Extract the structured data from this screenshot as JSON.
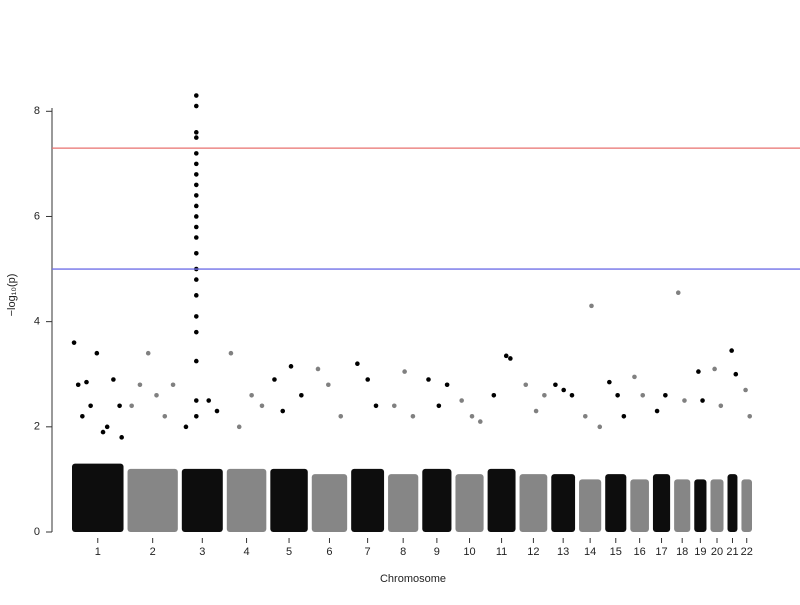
{
  "chart_data": {
    "type": "manhattan",
    "x_label": "Chromosome",
    "y_label": "−log₁₀(p)",
    "ylim": [
      0,
      8.5
    ],
    "yticks": [
      0,
      2,
      4,
      6,
      8
    ],
    "thresholds": [
      {
        "value": 7.3,
        "color": "#e8716f"
      },
      {
        "value": 5,
        "color": "#7070e8"
      }
    ],
    "series": [
      {
        "name": "1",
        "color": "#000000",
        "dense_max": 1.3,
        "x": [
          10,
          30,
          50,
          70,
          90,
          120,
          150,
          170,
          200,
          230,
          240
        ],
        "values": [
          3.6,
          2.8,
          2.2,
          2.85,
          2.4,
          3.4,
          1.9,
          2.0,
          2.9,
          2.4,
          1.8
        ]
      },
      {
        "name": "2",
        "color": "#808080",
        "dense_max": 1.2,
        "x": [
          20,
          60,
          100,
          140,
          180,
          220
        ],
        "values": [
          2.4,
          2.8,
          3.4,
          2.6,
          2.2,
          2.8
        ]
      },
      {
        "name": "3",
        "color": "#000000",
        "dense_max": 1.2,
        "x": [
          20,
          70,
          70,
          70,
          70,
          70,
          70,
          70,
          70,
          70,
          70,
          70,
          70,
          70,
          70,
          70,
          70,
          70,
          70,
          70,
          70,
          70,
          70,
          130,
          170
        ],
        "values": [
          2.0,
          8.3,
          8.1,
          7.6,
          7.5,
          7.2,
          7.0,
          6.8,
          6.6,
          6.4,
          6.2,
          6.0,
          5.8,
          5.6,
          5.3,
          5.0,
          4.8,
          4.5,
          4.1,
          3.8,
          3.25,
          2.5,
          2.2,
          2.5,
          2.3
        ]
      },
      {
        "name": "4",
        "color": "#808080",
        "dense_max": 1.2,
        "x": [
          20,
          60,
          120,
          170
        ],
        "values": [
          3.4,
          2.0,
          2.6,
          2.4
        ]
      },
      {
        "name": "5",
        "color": "#000000",
        "dense_max": 1.2,
        "x": [
          20,
          60,
          100,
          150
        ],
        "values": [
          2.9,
          2.3,
          3.15,
          2.6
        ]
      },
      {
        "name": "6",
        "color": "#808080",
        "dense_max": 1.1,
        "x": [
          30,
          80,
          140
        ],
        "values": [
          3.1,
          2.8,
          2.2
        ]
      },
      {
        "name": "7",
        "color": "#000000",
        "dense_max": 1.2,
        "x": [
          30,
          80,
          120
        ],
        "values": [
          3.2,
          2.9,
          2.4
        ]
      },
      {
        "name": "8",
        "color": "#808080",
        "dense_max": 1.1,
        "x": [
          30,
          80,
          120
        ],
        "values": [
          2.4,
          3.05,
          2.2
        ]
      },
      {
        "name": "9",
        "color": "#000000",
        "dense_max": 1.2,
        "x": [
          30,
          80,
          120
        ],
        "values": [
          2.9,
          2.4,
          2.8
        ]
      },
      {
        "name": "10",
        "color": "#808080",
        "dense_max": 1.1,
        "x": [
          30,
          80,
          120
        ],
        "values": [
          2.5,
          2.2,
          2.1
        ]
      },
      {
        "name": "11",
        "color": "#000000",
        "dense_max": 1.2,
        "x": [
          30,
          90,
          110
        ],
        "values": [
          2.6,
          3.35,
          3.3
        ]
      },
      {
        "name": "12",
        "color": "#808080",
        "dense_max": 1.1,
        "x": [
          30,
          80,
          120
        ],
        "values": [
          2.8,
          2.3,
          2.6
        ]
      },
      {
        "name": "13",
        "color": "#000000",
        "dense_max": 1.1,
        "x": [
          20,
          60,
          100
        ],
        "values": [
          2.8,
          2.7,
          2.6
        ]
      },
      {
        "name": "14",
        "color": "#808080",
        "dense_max": 1.0,
        "x": [
          30,
          60,
          100
        ],
        "values": [
          2.2,
          4.3,
          2.0
        ]
      },
      {
        "name": "15",
        "color": "#000000",
        "dense_max": 1.1,
        "x": [
          20,
          60,
          90
        ],
        "values": [
          2.85,
          2.6,
          2.2
        ]
      },
      {
        "name": "16",
        "color": "#808080",
        "dense_max": 1.0,
        "x": [
          20,
          60
        ],
        "values": [
          2.95,
          2.6
        ]
      },
      {
        "name": "17",
        "color": "#000000",
        "dense_max": 1.1,
        "x": [
          20,
          60
        ],
        "values": [
          2.3,
          2.6
        ]
      },
      {
        "name": "18",
        "color": "#808080",
        "dense_max": 1.0,
        "x": [
          20,
          50
        ],
        "values": [
          4.55,
          2.5
        ]
      },
      {
        "name": "19",
        "color": "#000000",
        "dense_max": 1.0,
        "x": [
          20,
          40
        ],
        "values": [
          3.05,
          2.5
        ]
      },
      {
        "name": "20",
        "color": "#808080",
        "dense_max": 1.0,
        "x": [
          20,
          50
        ],
        "values": [
          3.1,
          2.4
        ]
      },
      {
        "name": "21",
        "color": "#000000",
        "dense_max": 1.1,
        "x": [
          20,
          40
        ],
        "values": [
          3.45,
          3.0
        ]
      },
      {
        "name": "22",
        "color": "#808080",
        "dense_max": 1.0,
        "x": [
          20,
          40
        ],
        "values": [
          2.7,
          2.2
        ]
      }
    ]
  }
}
